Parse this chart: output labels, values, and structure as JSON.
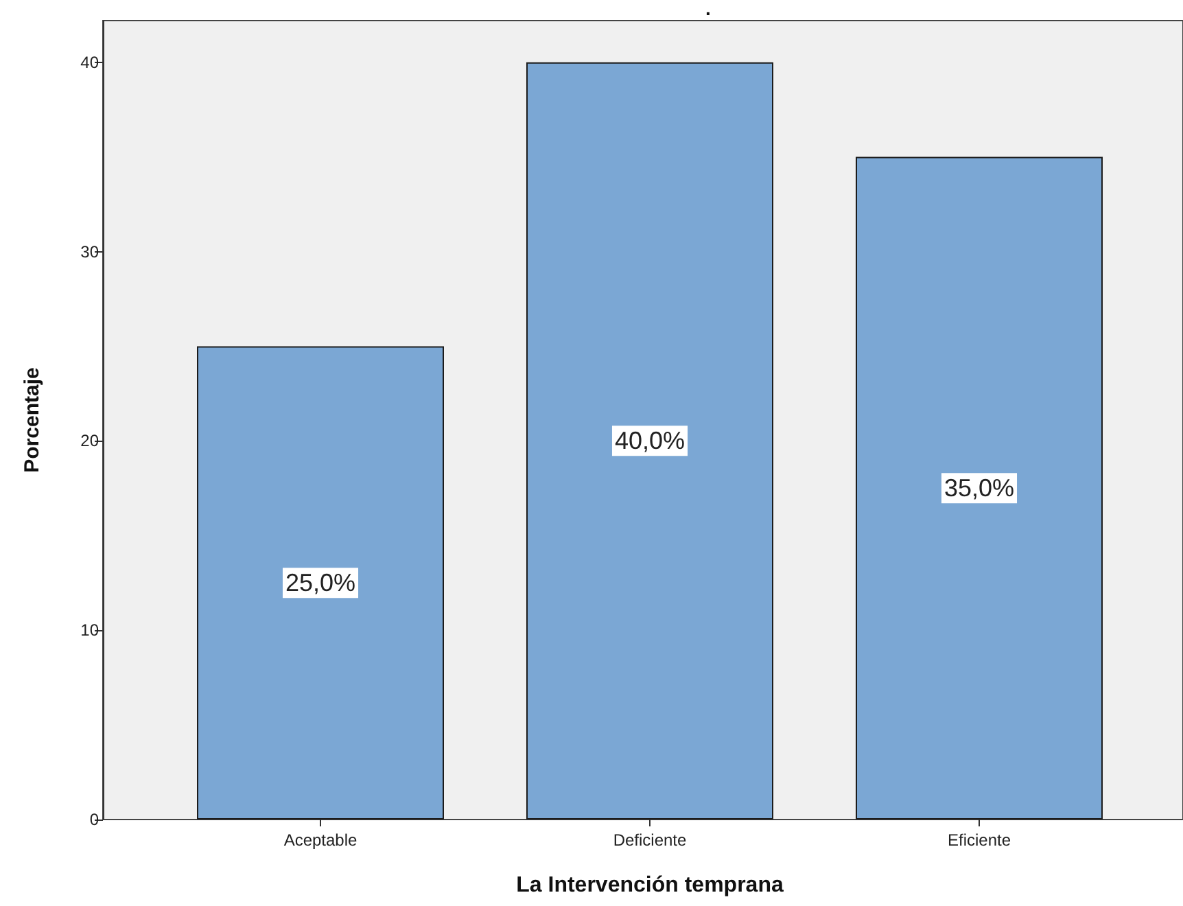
{
  "chart_data": {
    "type": "bar",
    "title": ".",
    "xlabel": "La Intervención temprana",
    "ylabel": "Porcentaje",
    "categories": [
      "Aceptable",
      "Deficiente",
      "Eficiente"
    ],
    "values": [
      25,
      40,
      35
    ],
    "value_labels": [
      "25,0%",
      "40,0%",
      "35,0%"
    ],
    "color": "#7ba7d4",
    "ylim": [
      0,
      42.2
    ],
    "yticks": [
      0,
      10,
      20,
      30,
      40
    ]
  }
}
